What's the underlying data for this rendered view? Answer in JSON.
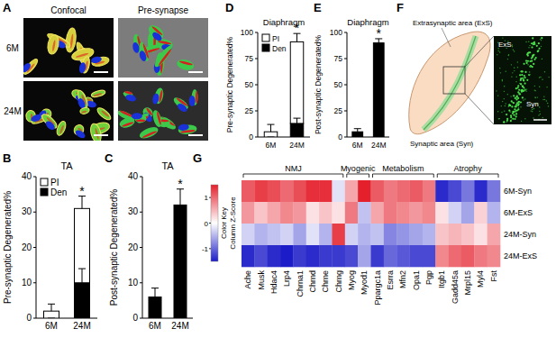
{
  "figure": {
    "panel_labels": [
      "A",
      "B",
      "C",
      "D",
      "E",
      "F",
      "G"
    ],
    "A": {
      "columns": [
        "Confocal",
        "Pre-synapse"
      ],
      "rows": [
        "6M",
        "24M"
      ]
    },
    "F": {
      "labels": [
        "Extrasynaptic area (ExS)",
        "Synaptic area (Syn)"
      ],
      "inset_labels": [
        "ExS",
        "Syn"
      ]
    }
  },
  "chart_data": [
    {
      "type": "bar",
      "title": "TA",
      "y_label": "Pre-synaptic Degenerated%",
      "categories": [
        "6M",
        "24M"
      ],
      "stacked": true,
      "legend": "top-left",
      "series": [
        {
          "name": "Den",
          "color": "#000000",
          "values": [
            0,
            10
          ],
          "errors": [
            0,
            4
          ]
        },
        {
          "name": "PI",
          "color": "#ffffff",
          "values": [
            2,
            21
          ],
          "errors": [
            2,
            3.5
          ]
        }
      ],
      "ylim": [
        0,
        40
      ],
      "yticks": [
        0,
        10,
        20,
        30,
        40
      ],
      "annotation": {
        "text": "*",
        "category": "24M"
      }
    },
    {
      "type": "bar",
      "title": "TA",
      "y_label": "Post-synaptic Degenerated%",
      "categories": [
        "6M",
        "24M"
      ],
      "color": "#000000",
      "values": [
        6,
        32
      ],
      "errors": [
        2.5,
        4.5
      ],
      "ylim": [
        0,
        40
      ],
      "yticks": [
        0,
        10,
        20,
        30,
        40
      ],
      "annotation": {
        "text": "*",
        "category": "24M"
      }
    },
    {
      "type": "bar",
      "title": "Diaphragm",
      "y_label": "Pre-synaptic Degenerated%",
      "categories": [
        "6M",
        "24M"
      ],
      "stacked": true,
      "legend": "top-left",
      "series": [
        {
          "name": "Den",
          "color": "#000000",
          "values": [
            0,
            13
          ],
          "errors": [
            0,
            5
          ]
        },
        {
          "name": "PI",
          "color": "#ffffff",
          "values": [
            5,
            78
          ],
          "errors": [
            7,
            8
          ]
        }
      ],
      "ylim": [
        0,
        100
      ],
      "yticks": [
        0,
        25,
        50,
        75,
        100
      ],
      "annotation": {
        "text": "*",
        "category": "24M"
      }
    },
    {
      "type": "bar",
      "title": "Diaphragm",
      "y_label": "Post-synaptic Degenerated%",
      "categories": [
        "6M",
        "24M"
      ],
      "color": "#000000",
      "values": [
        5,
        90
      ],
      "errors": [
        3,
        4
      ],
      "ylim": [
        0,
        100
      ],
      "yticks": [
        0,
        25,
        50,
        75,
        100
      ],
      "annotation": {
        "text": "*",
        "category": "24M"
      }
    },
    {
      "type": "heatmap",
      "color_key_title": "Color Key",
      "color_key_label": "Column Z-Score",
      "rows": [
        "6M-Syn",
        "6M-ExS",
        "24M-Syn",
        "24M-ExS"
      ],
      "columns": [
        "Ache",
        "Musk",
        "Hdac4",
        "Lrp4",
        "Chrna1",
        "Chrnd",
        "Chrne",
        "Chrng",
        "Myog",
        "Myod1",
        "Ppargc1a",
        "Esrra",
        "Mfn2",
        "Opa1",
        "Pgp",
        "Itgb1",
        "Gadd45a",
        "Mrpl15",
        "Myl4",
        "Fst"
      ],
      "groups": [
        {
          "label": "NMJ",
          "columns": [
            0,
            7
          ]
        },
        {
          "label": "Myogenic",
          "columns": [
            8,
            9
          ]
        },
        {
          "label": "Metabolism",
          "columns": [
            10,
            14
          ]
        },
        {
          "label": "Atrophy",
          "columns": [
            15,
            19
          ]
        }
      ],
      "cells": [
        [
          1.1,
          1.3,
          1.2,
          1.0,
          1.2,
          1.4,
          1.4,
          -0.2,
          0.6,
          1.5,
          1.1,
          0.9,
          1.0,
          1.1,
          0.9,
          -1.4,
          -1.2,
          -0.9,
          -1.4,
          -0.9
        ],
        [
          0.7,
          0.4,
          0.6,
          0.8,
          0.7,
          0.2,
          0.4,
          0.2,
          0.9,
          -0.4,
          0.6,
          0.9,
          0.8,
          0.7,
          0.8,
          0.2,
          -0.3,
          -0.6,
          0.3,
          -0.5
        ],
        [
          -0.3,
          -0.5,
          -0.4,
          -0.3,
          -0.6,
          -0.2,
          -0.5,
          1.3,
          -0.3,
          -0.5,
          -0.4,
          -0.8,
          -0.7,
          -0.6,
          -0.5,
          0.4,
          0.5,
          0.4,
          0.2,
          0.6
        ],
        [
          -1.4,
          -1.2,
          -1.4,
          -1.5,
          -1.3,
          -1.4,
          -1.3,
          -1.3,
          -1.2,
          -0.6,
          -1.3,
          -1.0,
          -1.1,
          -1.2,
          -1.2,
          0.8,
          1.0,
          1.1,
          0.9,
          0.8
        ]
      ],
      "colorbar": {
        "range": [
          -1.5,
          1.5
        ],
        "ticks": [
          -1,
          0,
          1
        ],
        "colors": [
          "#1c1cc8",
          "#ffffff",
          "#e4202c"
        ]
      }
    }
  ]
}
